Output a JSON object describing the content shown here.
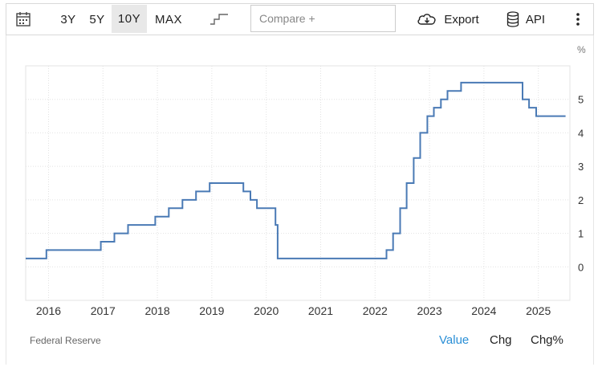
{
  "toolbar": {
    "ranges": [
      {
        "label": "3Y",
        "active": false
      },
      {
        "label": "5Y",
        "active": false
      },
      {
        "label": "10Y",
        "active": true
      },
      {
        "label": "MAX",
        "active": false
      }
    ],
    "compare_placeholder": "Compare +",
    "export_label": "Export",
    "api_label": "API",
    "icons": [
      "calendar-icon",
      "step-chart-icon",
      "cloud-download-icon",
      "database-icon",
      "more-vertical-icon"
    ]
  },
  "chart_data": {
    "type": "line",
    "step": true,
    "unit": "%",
    "title": "",
    "xlabel": "",
    "ylabel": "",
    "x_ticks": [
      "2016",
      "2017",
      "2018",
      "2019",
      "2020",
      "2021",
      "2022",
      "2023",
      "2024",
      "2025"
    ],
    "y_ticks": [
      "0",
      "1",
      "2",
      "3",
      "4",
      "5"
    ],
    "xlim": [
      2015.58,
      2025.58
    ],
    "ylim": [
      -1,
      6
    ],
    "grid": true,
    "color": "#4a7ab5",
    "series": [
      {
        "points": [
          [
            2015.58,
            0.25
          ],
          [
            2015.96,
            0.5
          ],
          [
            2016.96,
            0.75
          ],
          [
            2017.21,
            1.0
          ],
          [
            2017.46,
            1.25
          ],
          [
            2017.96,
            1.5
          ],
          [
            2018.21,
            1.75
          ],
          [
            2018.46,
            2.0
          ],
          [
            2018.71,
            2.25
          ],
          [
            2018.96,
            2.5
          ],
          [
            2019.58,
            2.25
          ],
          [
            2019.71,
            2.0
          ],
          [
            2019.83,
            1.75
          ],
          [
            2020.17,
            1.25
          ],
          [
            2020.21,
            0.25
          ],
          [
            2022.21,
            0.5
          ],
          [
            2022.33,
            1.0
          ],
          [
            2022.46,
            1.75
          ],
          [
            2022.58,
            2.5
          ],
          [
            2022.71,
            3.25
          ],
          [
            2022.83,
            4.0
          ],
          [
            2022.96,
            4.5
          ],
          [
            2023.08,
            4.75
          ],
          [
            2023.21,
            5.0
          ],
          [
            2023.33,
            5.25
          ],
          [
            2023.58,
            5.5
          ],
          [
            2024.71,
            5.0
          ],
          [
            2024.83,
            4.75
          ],
          [
            2024.96,
            4.5
          ],
          [
            2025.5,
            4.5
          ]
        ]
      }
    ]
  },
  "footer": {
    "source": "Federal Reserve",
    "modes": [
      {
        "label": "Value",
        "active": true
      },
      {
        "label": "Chg",
        "active": false
      },
      {
        "label": "Chg%",
        "active": false
      }
    ]
  }
}
